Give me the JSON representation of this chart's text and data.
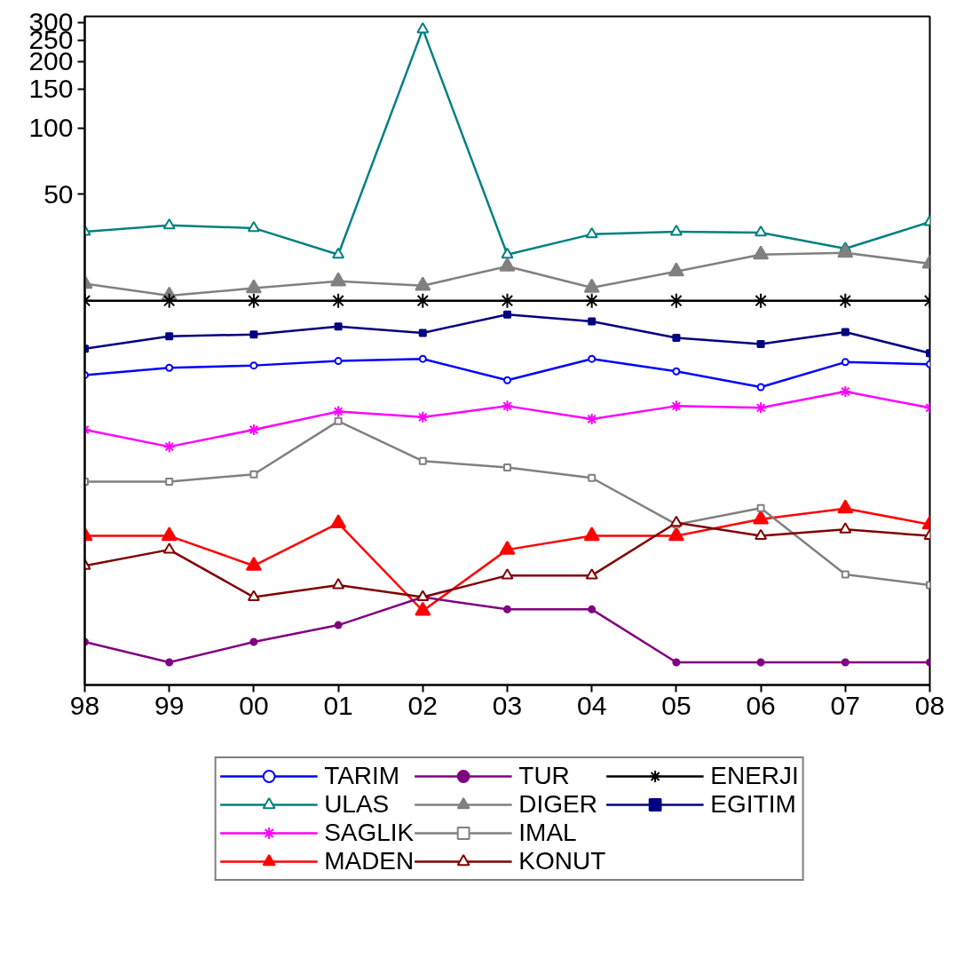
{
  "chart_data": {
    "type": "line",
    "log": true,
    "grid": false,
    "legend": "bottom",
    "categories": [
      "98",
      "99",
      "00",
      "01",
      "02",
      "03",
      "04",
      "05",
      "06",
      "07",
      "08"
    ],
    "ylim": [
      0.3,
      320
    ],
    "yticks": [
      50,
      100,
      150,
      200,
      250,
      300
    ],
    "series": [
      {
        "name": "TARIM",
        "color": "#0000ff",
        "marker": "circle",
        "values": [
          7.6,
          8.2,
          8.4,
          8.8,
          9.0,
          7.2,
          9.0,
          7.9,
          6.7,
          8.7,
          8.5
        ]
      },
      {
        "name": "ULAS",
        "color": "#008080",
        "marker": "triangle",
        "values": [
          33.9,
          36.2,
          35.2,
          26.7,
          280,
          26.7,
          33.0,
          33.9,
          33.6,
          28.4,
          37.5
        ]
      },
      {
        "name": "SAGLIK",
        "color": "#ff00ff",
        "marker": "cross",
        "values": [
          4.3,
          3.6,
          4.3,
          5.2,
          4.9,
          5.5,
          4.8,
          5.5,
          5.4,
          6.4,
          5.4
        ]
      },
      {
        "name": "MADEN",
        "color": "#ff0000",
        "marker": "triangle",
        "values": [
          1.42,
          1.42,
          1.04,
          1.62,
          0.65,
          1.23,
          1.42,
          1.42,
          1.69,
          1.89,
          1.6
        ]
      },
      {
        "name": "TUR",
        "color": "#800080",
        "marker": "circle",
        "values": [
          0.47,
          0.38,
          0.47,
          0.56,
          0.75,
          0.66,
          0.66,
          0.38,
          0.38,
          0.38,
          0.38
        ]
      },
      {
        "name": "DIGER",
        "color": "#808080",
        "marker": "triangle",
        "values": [
          19.7,
          17.4,
          18.8,
          20.2,
          19.3,
          23.6,
          18.9,
          22.4,
          26.7,
          27.2,
          24.3
        ]
      },
      {
        "name": "IMAL",
        "color": "#808080",
        "marker": "square",
        "values": [
          2.5,
          2.5,
          2.7,
          4.7,
          3.1,
          2.9,
          2.6,
          1.6,
          1.9,
          0.95,
          0.85
        ]
      },
      {
        "name": "KONUT",
        "color": "#800000",
        "marker": "triangle",
        "values": [
          1.04,
          1.23,
          0.75,
          0.85,
          0.75,
          0.94,
          0.94,
          1.63,
          1.42,
          1.52,
          1.42
        ]
      },
      {
        "name": "ENERJI",
        "color": "#000000",
        "marker": "cross",
        "values": [
          16.5,
          16.5,
          16.5,
          16.5,
          16.5,
          16.5,
          16.5,
          16.5,
          16.5,
          16.5,
          16.5
        ]
      },
      {
        "name": "EGITIM",
        "color": "#000080",
        "marker": "square",
        "values": [
          10.0,
          11.4,
          11.6,
          12.6,
          11.8,
          14.3,
          13.3,
          11.2,
          10.5,
          11.9,
          9.55
        ]
      }
    ]
  }
}
